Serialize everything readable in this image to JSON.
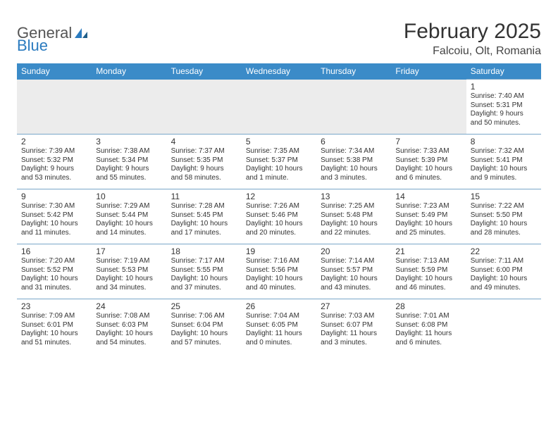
{
  "branding": {
    "logo_text_1": "General",
    "logo_text_2": "Blue",
    "logo_color_gray": "#6b6b6b",
    "logo_color_blue": "#2b7bbf"
  },
  "header": {
    "month_title": "February 2025",
    "location": "Falcoiu, Olt, Romania"
  },
  "style": {
    "header_bg": "#3b8bc8",
    "header_text": "#ffffff",
    "row_border": "#79a7c9",
    "blank_bg": "#ececec",
    "text_color": "#333333",
    "page_bg": "#ffffff"
  },
  "weekdays": [
    "Sunday",
    "Monday",
    "Tuesday",
    "Wednesday",
    "Thursday",
    "Friday",
    "Saturday"
  ],
  "days": {
    "1": {
      "sunrise": "7:40 AM",
      "sunset": "5:31 PM",
      "daylight": "9 hours and 50 minutes."
    },
    "2": {
      "sunrise": "7:39 AM",
      "sunset": "5:32 PM",
      "daylight": "9 hours and 53 minutes."
    },
    "3": {
      "sunrise": "7:38 AM",
      "sunset": "5:34 PM",
      "daylight": "9 hours and 55 minutes."
    },
    "4": {
      "sunrise": "7:37 AM",
      "sunset": "5:35 PM",
      "daylight": "9 hours and 58 minutes."
    },
    "5": {
      "sunrise": "7:35 AM",
      "sunset": "5:37 PM",
      "daylight": "10 hours and 1 minute."
    },
    "6": {
      "sunrise": "7:34 AM",
      "sunset": "5:38 PM",
      "daylight": "10 hours and 3 minutes."
    },
    "7": {
      "sunrise": "7:33 AM",
      "sunset": "5:39 PM",
      "daylight": "10 hours and 6 minutes."
    },
    "8": {
      "sunrise": "7:32 AM",
      "sunset": "5:41 PM",
      "daylight": "10 hours and 9 minutes."
    },
    "9": {
      "sunrise": "7:30 AM",
      "sunset": "5:42 PM",
      "daylight": "10 hours and 11 minutes."
    },
    "10": {
      "sunrise": "7:29 AM",
      "sunset": "5:44 PM",
      "daylight": "10 hours and 14 minutes."
    },
    "11": {
      "sunrise": "7:28 AM",
      "sunset": "5:45 PM",
      "daylight": "10 hours and 17 minutes."
    },
    "12": {
      "sunrise": "7:26 AM",
      "sunset": "5:46 PM",
      "daylight": "10 hours and 20 minutes."
    },
    "13": {
      "sunrise": "7:25 AM",
      "sunset": "5:48 PM",
      "daylight": "10 hours and 22 minutes."
    },
    "14": {
      "sunrise": "7:23 AM",
      "sunset": "5:49 PM",
      "daylight": "10 hours and 25 minutes."
    },
    "15": {
      "sunrise": "7:22 AM",
      "sunset": "5:50 PM",
      "daylight": "10 hours and 28 minutes."
    },
    "16": {
      "sunrise": "7:20 AM",
      "sunset": "5:52 PM",
      "daylight": "10 hours and 31 minutes."
    },
    "17": {
      "sunrise": "7:19 AM",
      "sunset": "5:53 PM",
      "daylight": "10 hours and 34 minutes."
    },
    "18": {
      "sunrise": "7:17 AM",
      "sunset": "5:55 PM",
      "daylight": "10 hours and 37 minutes."
    },
    "19": {
      "sunrise": "7:16 AM",
      "sunset": "5:56 PM",
      "daylight": "10 hours and 40 minutes."
    },
    "20": {
      "sunrise": "7:14 AM",
      "sunset": "5:57 PM",
      "daylight": "10 hours and 43 minutes."
    },
    "21": {
      "sunrise": "7:13 AM",
      "sunset": "5:59 PM",
      "daylight": "10 hours and 46 minutes."
    },
    "22": {
      "sunrise": "7:11 AM",
      "sunset": "6:00 PM",
      "daylight": "10 hours and 49 minutes."
    },
    "23": {
      "sunrise": "7:09 AM",
      "sunset": "6:01 PM",
      "daylight": "10 hours and 51 minutes."
    },
    "24": {
      "sunrise": "7:08 AM",
      "sunset": "6:03 PM",
      "daylight": "10 hours and 54 minutes."
    },
    "25": {
      "sunrise": "7:06 AM",
      "sunset": "6:04 PM",
      "daylight": "10 hours and 57 minutes."
    },
    "26": {
      "sunrise": "7:04 AM",
      "sunset": "6:05 PM",
      "daylight": "11 hours and 0 minutes."
    },
    "27": {
      "sunrise": "7:03 AM",
      "sunset": "6:07 PM",
      "daylight": "11 hours and 3 minutes."
    },
    "28": {
      "sunrise": "7:01 AM",
      "sunset": "6:08 PM",
      "daylight": "11 hours and 6 minutes."
    }
  },
  "labels": {
    "sunrise_prefix": "Sunrise: ",
    "sunset_prefix": "Sunset: ",
    "daylight_prefix": "Daylight: "
  },
  "layout": {
    "first_weekday_index": 6,
    "num_days": 28
  }
}
